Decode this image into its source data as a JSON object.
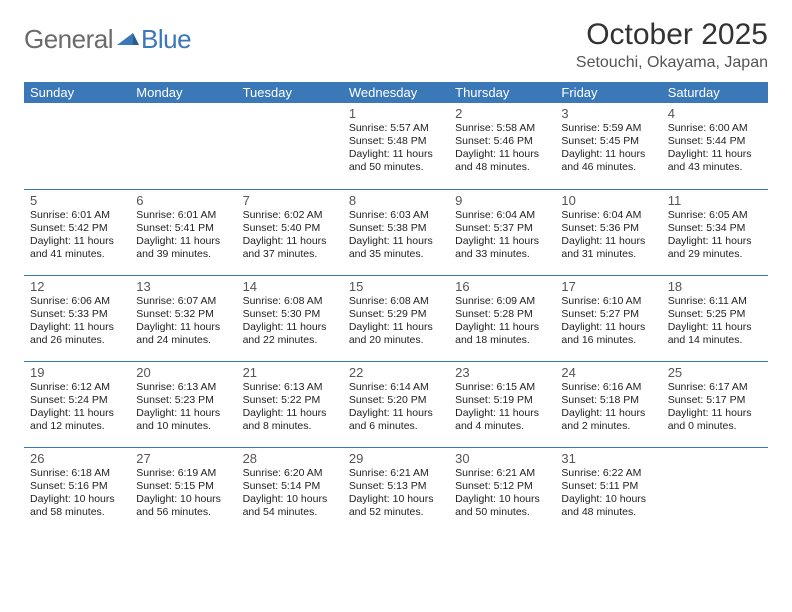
{
  "logo": {
    "word1": "General",
    "word2": "Blue"
  },
  "title": "October 2025",
  "location": "Setouchi, Okayama, Japan",
  "colors": {
    "accent": "#3b78b8",
    "header_text": "#ffffff",
    "logo_gray": "#6b6b6b",
    "divider": "#3b78b8",
    "text": "#222222",
    "muted": "#555555",
    "background": "#ffffff"
  },
  "day_names": [
    "Sunday",
    "Monday",
    "Tuesday",
    "Wednesday",
    "Thursday",
    "Friday",
    "Saturday"
  ],
  "weeks": [
    [
      null,
      null,
      null,
      {
        "n": "1",
        "sr": "5:57 AM",
        "ss": "5:48 PM",
        "dh": "11",
        "dm": "50"
      },
      {
        "n": "2",
        "sr": "5:58 AM",
        "ss": "5:46 PM",
        "dh": "11",
        "dm": "48"
      },
      {
        "n": "3",
        "sr": "5:59 AM",
        "ss": "5:45 PM",
        "dh": "11",
        "dm": "46"
      },
      {
        "n": "4",
        "sr": "6:00 AM",
        "ss": "5:44 PM",
        "dh": "11",
        "dm": "43"
      }
    ],
    [
      {
        "n": "5",
        "sr": "6:01 AM",
        "ss": "5:42 PM",
        "dh": "11",
        "dm": "41"
      },
      {
        "n": "6",
        "sr": "6:01 AM",
        "ss": "5:41 PM",
        "dh": "11",
        "dm": "39"
      },
      {
        "n": "7",
        "sr": "6:02 AM",
        "ss": "5:40 PM",
        "dh": "11",
        "dm": "37"
      },
      {
        "n": "8",
        "sr": "6:03 AM",
        "ss": "5:38 PM",
        "dh": "11",
        "dm": "35"
      },
      {
        "n": "9",
        "sr": "6:04 AM",
        "ss": "5:37 PM",
        "dh": "11",
        "dm": "33"
      },
      {
        "n": "10",
        "sr": "6:04 AM",
        "ss": "5:36 PM",
        "dh": "11",
        "dm": "31"
      },
      {
        "n": "11",
        "sr": "6:05 AM",
        "ss": "5:34 PM",
        "dh": "11",
        "dm": "29"
      }
    ],
    [
      {
        "n": "12",
        "sr": "6:06 AM",
        "ss": "5:33 PM",
        "dh": "11",
        "dm": "26"
      },
      {
        "n": "13",
        "sr": "6:07 AM",
        "ss": "5:32 PM",
        "dh": "11",
        "dm": "24"
      },
      {
        "n": "14",
        "sr": "6:08 AM",
        "ss": "5:30 PM",
        "dh": "11",
        "dm": "22"
      },
      {
        "n": "15",
        "sr": "6:08 AM",
        "ss": "5:29 PM",
        "dh": "11",
        "dm": "20"
      },
      {
        "n": "16",
        "sr": "6:09 AM",
        "ss": "5:28 PM",
        "dh": "11",
        "dm": "18"
      },
      {
        "n": "17",
        "sr": "6:10 AM",
        "ss": "5:27 PM",
        "dh": "11",
        "dm": "16"
      },
      {
        "n": "18",
        "sr": "6:11 AM",
        "ss": "5:25 PM",
        "dh": "11",
        "dm": "14"
      }
    ],
    [
      {
        "n": "19",
        "sr": "6:12 AM",
        "ss": "5:24 PM",
        "dh": "11",
        "dm": "12"
      },
      {
        "n": "20",
        "sr": "6:13 AM",
        "ss": "5:23 PM",
        "dh": "11",
        "dm": "10"
      },
      {
        "n": "21",
        "sr": "6:13 AM",
        "ss": "5:22 PM",
        "dh": "11",
        "dm": "8"
      },
      {
        "n": "22",
        "sr": "6:14 AM",
        "ss": "5:20 PM",
        "dh": "11",
        "dm": "6"
      },
      {
        "n": "23",
        "sr": "6:15 AM",
        "ss": "5:19 PM",
        "dh": "11",
        "dm": "4"
      },
      {
        "n": "24",
        "sr": "6:16 AM",
        "ss": "5:18 PM",
        "dh": "11",
        "dm": "2"
      },
      {
        "n": "25",
        "sr": "6:17 AM",
        "ss": "5:17 PM",
        "dh": "11",
        "dm": "0"
      }
    ],
    [
      {
        "n": "26",
        "sr": "6:18 AM",
        "ss": "5:16 PM",
        "dh": "10",
        "dm": "58"
      },
      {
        "n": "27",
        "sr": "6:19 AM",
        "ss": "5:15 PM",
        "dh": "10",
        "dm": "56"
      },
      {
        "n": "28",
        "sr": "6:20 AM",
        "ss": "5:14 PM",
        "dh": "10",
        "dm": "54"
      },
      {
        "n": "29",
        "sr": "6:21 AM",
        "ss": "5:13 PM",
        "dh": "10",
        "dm": "52"
      },
      {
        "n": "30",
        "sr": "6:21 AM",
        "ss": "5:12 PM",
        "dh": "10",
        "dm": "50"
      },
      {
        "n": "31",
        "sr": "6:22 AM",
        "ss": "5:11 PM",
        "dh": "10",
        "dm": "48"
      },
      null
    ]
  ],
  "labels": {
    "sunrise": "Sunrise:",
    "sunset": "Sunset:",
    "daylight": "Daylight:",
    "hours": "hours",
    "and": "and",
    "minutes": "minutes."
  }
}
